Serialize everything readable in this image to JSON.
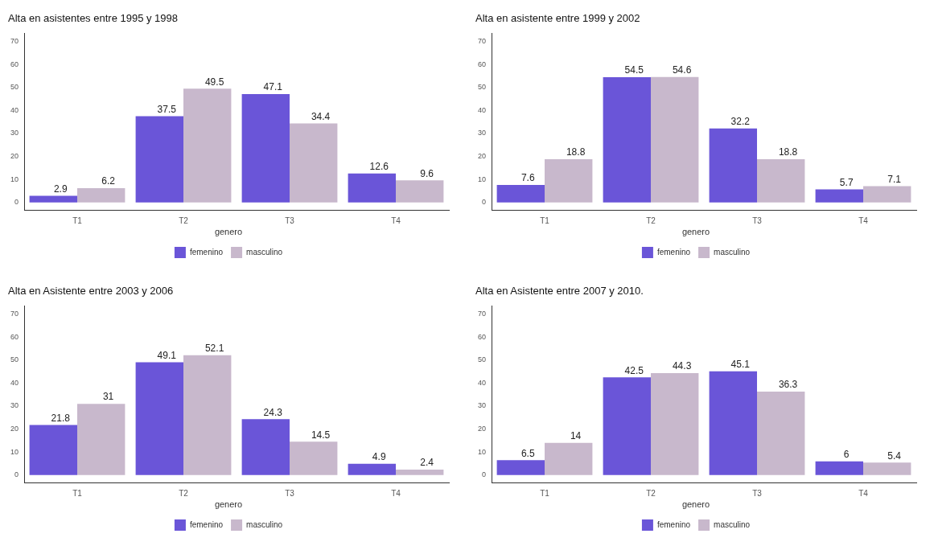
{
  "chart_data": [
    {
      "type": "bar",
      "title": "Alta en asistentes entre 1995 y 1998",
      "categories": [
        "T1",
        "T2",
        "T3",
        "T4"
      ],
      "legend_title": "genero",
      "legend": "bottom",
      "data_labels": true,
      "grid": false,
      "ylim": [
        -3.5,
        73.5
      ],
      "yticks": [
        0,
        10,
        20,
        30,
        40,
        50,
        60,
        70
      ],
      "series": [
        {
          "name": "femenino",
          "color": "#6a55d8",
          "values": [
            2.9,
            37.5,
            47.1,
            12.6
          ]
        },
        {
          "name": "masculino",
          "color": "#c8b8cc",
          "values": [
            6.2,
            49.5,
            34.4,
            9.6
          ]
        }
      ]
    },
    {
      "type": "bar",
      "title": "Alta en asistente entre 1999 y 2002",
      "categories": [
        "T1",
        "T2",
        "T3",
        "T4"
      ],
      "legend_title": "genero",
      "legend": "bottom",
      "data_labels": true,
      "grid": false,
      "ylim": [
        -3.5,
        73.5
      ],
      "yticks": [
        0,
        10,
        20,
        30,
        40,
        50,
        60,
        70
      ],
      "series": [
        {
          "name": "femenino",
          "color": "#6a55d8",
          "values": [
            7.6,
            54.5,
            32.2,
            5.7
          ]
        },
        {
          "name": "masculino",
          "color": "#c8b8cc",
          "values": [
            18.8,
            54.6,
            18.8,
            7.1
          ]
        }
      ]
    },
    {
      "type": "bar",
      "title": "Alta en Asistente entre 2003 y 2006",
      "categories": [
        "T1",
        "T2",
        "T3",
        "T4"
      ],
      "legend_title": "genero",
      "legend": "bottom",
      "data_labels": true,
      "grid": false,
      "ylim": [
        -3.5,
        73.5
      ],
      "yticks": [
        0,
        10,
        20,
        30,
        40,
        50,
        60,
        70
      ],
      "series": [
        {
          "name": "femenino",
          "color": "#6a55d8",
          "values": [
            21.8,
            49.1,
            24.3,
            4.9
          ]
        },
        {
          "name": "masculino",
          "color": "#c8b8cc",
          "values": [
            31,
            52.1,
            14.5,
            2.4
          ]
        }
      ]
    },
    {
      "type": "bar",
      "title": "Alta en Asistente entre 2007 y 2010.",
      "categories": [
        "T1",
        "T2",
        "T3",
        "T4"
      ],
      "legend_title": "genero",
      "legend": "bottom",
      "data_labels": true,
      "grid": false,
      "ylim": [
        -3.5,
        73.5
      ],
      "yticks": [
        0,
        10,
        20,
        30,
        40,
        50,
        60,
        70
      ],
      "series": [
        {
          "name": "femenino",
          "color": "#6a55d8",
          "values": [
            6.5,
            42.5,
            45.1,
            6
          ]
        },
        {
          "name": "masculino",
          "color": "#c8b8cc",
          "values": [
            14,
            44.3,
            36.3,
            5.4
          ]
        }
      ]
    }
  ]
}
